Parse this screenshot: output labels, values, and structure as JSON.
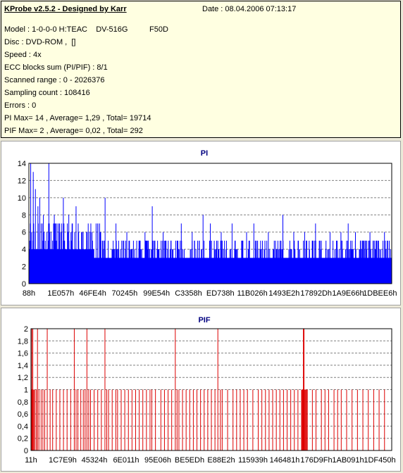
{
  "header": {
    "title": "KProbe v2.5.2 - Designed by Karr",
    "date": "Date : 08.04.2006 07:13:17"
  },
  "info_lines": [
    "Model : 1-0-0-0 H:TEAC    DV-516G          F50D",
    "Disc : DVD-ROM ,  []",
    "Speed : 4x",
    "ECC blocks sum (PI/PIF) : 8/1",
    "Scanned range : 0 - 2026376",
    "Sampling count : 108416",
    "Errors : 0",
    "PI Max= 14 , Average= 1,29 , Total= 19714",
    "PIF Max= 2 , Average= 0,02 , Total= 292"
  ],
  "colors": {
    "pi_fill": "#0000ff",
    "pif_line": "#dd0000",
    "title_color": "#000080",
    "grid": "#808080"
  },
  "chart_data": [
    {
      "type": "bar",
      "title": "PI",
      "xlabel": "",
      "ylabel": "",
      "ylim": [
        0,
        14
      ],
      "yticks": [
        "0",
        "2",
        "4",
        "6",
        "8",
        "10",
        "12",
        "14"
      ],
      "xtick_labels": [
        "88h",
        "1E057h",
        "46FE4h",
        "70245h",
        "99E54h",
        "C3358h",
        "ED738h",
        "11B026h",
        "1493E2h",
        "17892Dh",
        "1A9E66h",
        "1DBEE6h"
      ],
      "grid": true,
      "baseline_level": 3,
      "dense_level": 4,
      "spikes": [
        [
          0.005,
          14
        ],
        [
          0.012,
          13
        ],
        [
          0.018,
          11
        ],
        [
          0.025,
          9
        ],
        [
          0.03,
          10
        ],
        [
          0.04,
          8
        ],
        [
          0.055,
          14
        ],
        [
          0.07,
          8
        ],
        [
          0.085,
          7
        ],
        [
          0.095,
          10
        ],
        [
          0.11,
          8
        ],
        [
          0.12,
          7
        ],
        [
          0.13,
          9
        ],
        [
          0.16,
          6
        ],
        [
          0.19,
          7
        ],
        [
          0.21,
          10
        ],
        [
          0.24,
          7
        ],
        [
          0.27,
          6
        ],
        [
          0.32,
          6
        ],
        [
          0.34,
          9
        ],
        [
          0.37,
          6
        ],
        [
          0.42,
          7
        ],
        [
          0.45,
          6
        ],
        [
          0.48,
          8
        ],
        [
          0.5,
          7
        ],
        [
          0.53,
          6
        ],
        [
          0.56,
          7
        ],
        [
          0.6,
          6
        ],
        [
          0.62,
          7
        ],
        [
          0.66,
          6
        ],
        [
          0.7,
          8
        ],
        [
          0.73,
          6
        ],
        [
          0.76,
          6
        ],
        [
          0.79,
          7
        ],
        [
          0.83,
          6
        ],
        [
          0.86,
          6
        ],
        [
          0.88,
          7
        ],
        [
          0.9,
          6
        ],
        [
          0.94,
          6
        ],
        [
          0.98,
          6
        ]
      ]
    },
    {
      "type": "bar",
      "title": "PIF",
      "xlabel": "",
      "ylabel": "",
      "ylim": [
        0,
        2
      ],
      "yticks": [
        "0",
        "0,2",
        "0,4",
        "0,6",
        "0,8",
        "1",
        "1,2",
        "1,4",
        "1,6",
        "1,8",
        "2"
      ],
      "xtick_labels": [
        "11h",
        "1C7E9h",
        "45324h",
        "6E011h",
        "95E06h",
        "BE5EDh",
        "E88E2h",
        "115939h",
        "146481h",
        "176D9Fh",
        "1AB091h",
        "1DF450h"
      ],
      "grid": true,
      "twos": [
        0.002,
        0.005,
        0.018,
        0.045,
        0.12,
        0.155,
        0.205,
        0.4,
        0.518,
        0.755,
        0.757
      ],
      "ones": [
        0.0,
        0.003,
        0.006,
        0.008,
        0.011,
        0.015,
        0.022,
        0.028,
        0.033,
        0.038,
        0.053,
        0.06,
        0.07,
        0.08,
        0.09,
        0.1,
        0.11,
        0.125,
        0.13,
        0.138,
        0.145,
        0.15,
        0.16,
        0.165,
        0.175,
        0.185,
        0.195,
        0.21,
        0.215,
        0.225,
        0.235,
        0.24,
        0.25,
        0.26,
        0.27,
        0.28,
        0.29,
        0.3,
        0.31,
        0.32,
        0.33,
        0.335,
        0.345,
        0.36,
        0.37,
        0.38,
        0.39,
        0.405,
        0.41,
        0.42,
        0.43,
        0.44,
        0.45,
        0.46,
        0.47,
        0.48,
        0.49,
        0.5,
        0.51,
        0.525,
        0.53,
        0.545,
        0.56,
        0.57,
        0.58,
        0.59,
        0.6,
        0.615,
        0.63,
        0.64,
        0.65,
        0.66,
        0.67,
        0.68,
        0.69,
        0.7,
        0.71,
        0.72,
        0.73,
        0.74,
        0.75,
        0.752,
        0.754,
        0.756,
        0.758,
        0.76,
        0.762,
        0.764,
        0.766,
        0.78,
        0.79,
        0.805,
        0.815,
        0.825,
        0.84,
        0.85,
        0.86,
        0.875,
        0.89,
        0.905,
        0.92,
        0.935,
        0.95,
        0.965,
        0.98
      ]
    }
  ]
}
